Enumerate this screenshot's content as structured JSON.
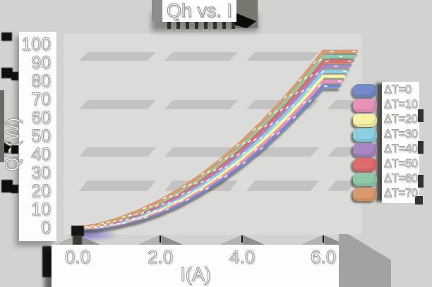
{
  "title": "Qh vs. I",
  "axes": {
    "x_label": "I(A)",
    "y_label": "Qh(W)",
    "x_ticks": [
      "0.0",
      "2.0",
      "4.0",
      "6.0"
    ],
    "y_ticks": [
      "100",
      "90",
      "80",
      "70",
      "60",
      "50",
      "40",
      "30",
      "20",
      "10",
      "0"
    ]
  },
  "legend": {
    "items": [
      {
        "label": "ΔT=0",
        "color": "#7289cb"
      },
      {
        "label": "ΔT=10",
        "color": "#e792ba"
      },
      {
        "label": "ΔT=20",
        "color": "#f6f2a3"
      },
      {
        "label": "ΔT=30",
        "color": "#8bcfe0"
      },
      {
        "label": "ΔT=40",
        "color": "#a687c3"
      },
      {
        "label": "ΔT=50",
        "color": "#df6b6c"
      },
      {
        "label": "ΔT=60",
        "color": "#8ecaa9"
      },
      {
        "label": "ΔT=70",
        "color": "#d79b6e"
      }
    ]
  },
  "colors": {
    "background": "#d2d2d0",
    "plot_background": "#dbdbd9",
    "grid_band": "#c3c3c1",
    "text_fill": "#ffffff",
    "text_outline": "#a2a29f"
  },
  "chart_data": {
    "type": "line",
    "title": "Qh vs. I",
    "xlabel": "I(A)",
    "ylabel": "Qh(W)",
    "xlim": [
      0,
      6.5
    ],
    "ylim": [
      0,
      100
    ],
    "grid": "horizontal-bands",
    "legend_position": "right",
    "x": [
      0,
      0.5,
      1,
      1.5,
      2,
      2.5,
      3,
      3.5,
      4,
      4.5,
      5,
      5.5,
      6
    ],
    "series": [
      {
        "name": "ΔT=0",
        "color": "#7289cb",
        "values": [
          0,
          0.5,
          2.2,
          4.8,
          8.6,
          13.4,
          19.4,
          26.3,
          34.4,
          43.5,
          53.8,
          65.0,
          77.4
        ]
      },
      {
        "name": "ΔT=10",
        "color": "#e792ba",
        "values": [
          0,
          0.8,
          2.6,
          5.5,
          9.5,
          14.6,
          20.7,
          27.9,
          36.2,
          45.6,
          56.0,
          67.5,
          80.1
        ]
      },
      {
        "name": "ΔT=20",
        "color": "#f6f2a3",
        "values": [
          0,
          1.0,
          3.1,
          6.2,
          10.4,
          15.7,
          22.1,
          29.5,
          38.0,
          47.6,
          58.3,
          70.0,
          82.8
        ]
      },
      {
        "name": "ΔT=30",
        "color": "#8bcfe0",
        "values": [
          0,
          1.2,
          3.5,
          6.9,
          11.3,
          16.8,
          23.4,
          31.1,
          39.8,
          49.6,
          60.5,
          72.5,
          85.5
        ]
      },
      {
        "name": "ΔT=40",
        "color": "#a687c3",
        "values": [
          0,
          1.4,
          4.0,
          7.5,
          12.2,
          17.9,
          24.8,
          32.6,
          41.6,
          51.6,
          62.8,
          74.9,
          88.2
        ]
      },
      {
        "name": "ΔT=50",
        "color": "#df6b6c",
        "values": [
          0,
          1.7,
          4.4,
          8.2,
          13.1,
          19.1,
          26.1,
          34.2,
          43.4,
          53.7,
          65.0,
          77.4,
          90.9
        ]
      },
      {
        "name": "ΔT=60",
        "color": "#8ecaa9",
        "values": [
          0,
          1.9,
          4.9,
          8.9,
          14.0,
          20.2,
          27.5,
          35.8,
          45.2,
          55.7,
          67.3,
          79.9,
          93.6
        ]
      },
      {
        "name": "ΔT=70",
        "color": "#d79b6e",
        "values": [
          0,
          2.1,
          5.3,
          9.6,
          14.9,
          21.3,
          28.8,
          37.4,
          47.0,
          57.7,
          69.5,
          82.4,
          96.3
        ]
      }
    ]
  }
}
